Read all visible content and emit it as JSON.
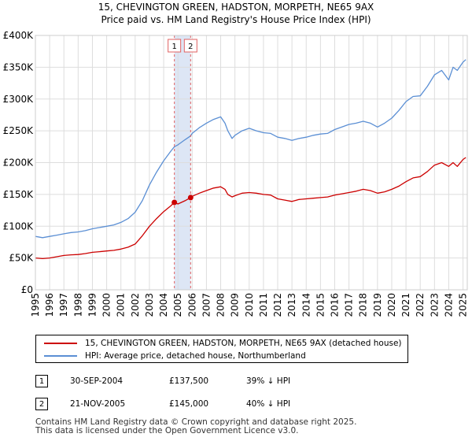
{
  "title_line1": "15, CHEVINGTON GREEN, HADSTON, MORPETH, NE65 9AX",
  "title_line2": "Price paid vs. HM Land Registry's House Price Index (HPI)",
  "colors": {
    "price_paid": "#cc0000",
    "hpi": "#5b8fd4",
    "shade": "#dde6f5",
    "marker_line": "#e06060",
    "grid": "#dddddd"
  },
  "legend": {
    "price_paid_label": "15, CHEVINGTON GREEN, HADSTON, MORPETH, NE65 9AX (detached house)",
    "hpi_label": "HPI: Average price, detached house, Northumberland"
  },
  "transactions": [
    {
      "id": "1",
      "date": "30-SEP-2004",
      "price": "£137,500",
      "hpi_diff": "39% ↓ HPI"
    },
    {
      "id": "2",
      "date": "21-NOV-2005",
      "price": "£145,000",
      "hpi_diff": "40% ↓ HPI"
    }
  ],
  "footer_line1": "Contains HM Land Registry data © Crown copyright and database right 2025.",
  "footer_line2": "This data is licensed under the Open Government Licence v3.0.",
  "chart_data": {
    "type": "line",
    "title": "15, CHEVINGTON GREEN, HADSTON, MORPETH, NE65 9AX — Price paid vs. HM Land Registry's House Price Index (HPI)",
    "xlabel": "",
    "ylabel": "",
    "xlim": [
      1995,
      2025.3
    ],
    "ylim": [
      0,
      400000
    ],
    "x_ticks": [
      1995,
      1996,
      1997,
      1998,
      1999,
      2000,
      2001,
      2002,
      2003,
      2004,
      2005,
      2006,
      2007,
      2008,
      2009,
      2010,
      2011,
      2012,
      2013,
      2014,
      2015,
      2016,
      2017,
      2018,
      2019,
      2020,
      2021,
      2022,
      2023,
      2024,
      2025
    ],
    "y_ticks": [
      {
        "value": 0,
        "label": "£0"
      },
      {
        "value": 50000,
        "label": "£50K"
      },
      {
        "value": 100000,
        "label": "£100K"
      },
      {
        "value": 150000,
        "label": "£150K"
      },
      {
        "value": 200000,
        "label": "£200K"
      },
      {
        "value": 250000,
        "label": "£250K"
      },
      {
        "value": 300000,
        "label": "£300K"
      },
      {
        "value": 350000,
        "label": "£350K"
      },
      {
        "value": 400000,
        "label": "£400K"
      }
    ],
    "grid": true,
    "legend_position": "bottom",
    "shaded_band": [
      2004.75,
      2005.89
    ],
    "markers": [
      {
        "label": "1",
        "x": 2004.75,
        "y": 137500
      },
      {
        "label": "2",
        "x": 2005.89,
        "y": 145000
      }
    ],
    "series": [
      {
        "name": "15, CHEVINGTON GREEN, HADSTON, MORPETH, NE65 9AX (detached house)",
        "color": "#cc0000",
        "x": [
          1995.0,
          1995.5,
          1996.0,
          1996.5,
          1997.0,
          1997.5,
          1998.0,
          1998.5,
          1999.0,
          1999.5,
          2000.0,
          2000.5,
          2001.0,
          2001.5,
          2002.0,
          2002.5,
          2003.0,
          2003.5,
          2004.0,
          2004.5,
          2004.75,
          2005.0,
          2005.5,
          2005.89,
          2006.0,
          2006.5,
          2007.0,
          2007.5,
          2008.0,
          2008.3,
          2008.5,
          2008.8,
          2009.0,
          2009.5,
          2010.0,
          2010.5,
          2011.0,
          2011.5,
          2012.0,
          2012.5,
          2013.0,
          2013.5,
          2014.0,
          2014.5,
          2015.0,
          2015.5,
          2016.0,
          2016.5,
          2017.0,
          2017.5,
          2018.0,
          2018.5,
          2019.0,
          2019.5,
          2020.0,
          2020.5,
          2021.0,
          2021.5,
          2022.0,
          2022.5,
          2023.0,
          2023.5,
          2024.0,
          2024.3,
          2024.6,
          2025.0,
          2025.2
        ],
        "values": [
          50000,
          49000,
          50000,
          52000,
          54000,
          55000,
          55500,
          57000,
          59000,
          60000,
          61000,
          62000,
          64000,
          67000,
          72000,
          85000,
          100000,
          112000,
          123000,
          132000,
          137500,
          135000,
          140000,
          145000,
          147000,
          152000,
          156000,
          160000,
          162000,
          158000,
          150000,
          146000,
          148000,
          152000,
          153000,
          152000,
          150000,
          149000,
          143000,
          141000,
          139000,
          142000,
          143000,
          144000,
          145000,
          146000,
          149000,
          151000,
          153000,
          155000,
          158000,
          156000,
          152000,
          154000,
          158000,
          163000,
          170000,
          176000,
          178000,
          186000,
          196000,
          200000,
          194000,
          200000,
          194000,
          205000,
          208000
        ]
      },
      {
        "name": "HPI: Average price, detached house, Northumberland",
        "color": "#5b8fd4",
        "x": [
          1995.0,
          1995.5,
          1996.0,
          1996.5,
          1997.0,
          1997.5,
          1998.0,
          1998.5,
          1999.0,
          1999.5,
          2000.0,
          2000.5,
          2001.0,
          2001.5,
          2002.0,
          2002.5,
          2003.0,
          2003.5,
          2004.0,
          2004.5,
          2004.75,
          2005.0,
          2005.5,
          2005.89,
          2006.0,
          2006.5,
          2007.0,
          2007.5,
          2008.0,
          2008.3,
          2008.5,
          2008.8,
          2009.0,
          2009.5,
          2010.0,
          2010.5,
          2011.0,
          2011.5,
          2012.0,
          2012.5,
          2013.0,
          2013.5,
          2014.0,
          2014.5,
          2015.0,
          2015.5,
          2016.0,
          2016.5,
          2017.0,
          2017.5,
          2018.0,
          2018.5,
          2019.0,
          2019.5,
          2020.0,
          2020.5,
          2021.0,
          2021.5,
          2022.0,
          2022.5,
          2023.0,
          2023.5,
          2024.0,
          2024.3,
          2024.6,
          2025.0,
          2025.2
        ],
        "values": [
          84000,
          82000,
          84000,
          86000,
          88000,
          90000,
          91000,
          93000,
          96000,
          98000,
          100000,
          102000,
          106000,
          112000,
          122000,
          140000,
          165000,
          185000,
          203000,
          218000,
          225000,
          228000,
          236000,
          242000,
          246000,
          255000,
          262000,
          268000,
          272000,
          262000,
          250000,
          238000,
          243000,
          250000,
          254000,
          250000,
          247000,
          246000,
          240000,
          238000,
          235000,
          238000,
          240000,
          243000,
          245000,
          246000,
          252000,
          256000,
          260000,
          262000,
          265000,
          262000,
          256000,
          262000,
          270000,
          282000,
          296000,
          304000,
          305000,
          320000,
          338000,
          345000,
          330000,
          350000,
          345000,
          358000,
          362000
        ]
      }
    ]
  }
}
